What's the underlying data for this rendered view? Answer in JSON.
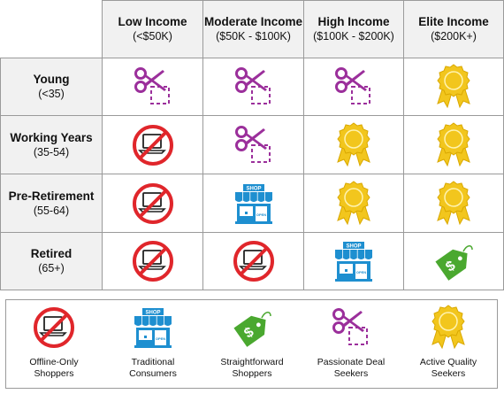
{
  "columns": [
    {
      "title": "Low Income",
      "range": "(<$50K)"
    },
    {
      "title": "Moderate Income",
      "range": "($50K - $100K)"
    },
    {
      "title": "High Income",
      "range": "($100K - $200K)"
    },
    {
      "title": "Elite Income",
      "range": "($200K+)"
    }
  ],
  "rows": [
    {
      "title": "Young",
      "range": "(<35)",
      "segments": [
        "scissors-icon",
        "scissors-icon",
        "scissors-icon",
        "ribbon-icon"
      ]
    },
    {
      "title": "Working Years",
      "range": "(35-54)",
      "segments": [
        "no-laptop-icon",
        "scissors-icon",
        "ribbon-icon",
        "ribbon-icon"
      ]
    },
    {
      "title": "Pre-Retirement",
      "range": "(55-64)",
      "segments": [
        "no-laptop-icon",
        "shop-icon",
        "ribbon-icon",
        "ribbon-icon"
      ]
    },
    {
      "title": "Retired",
      "range": "(65+)",
      "segments": [
        "no-laptop-icon",
        "no-laptop-icon",
        "shop-icon",
        "price-tag-icon"
      ]
    }
  ],
  "shop_sign": "SHOP",
  "shop_door": "OPEN",
  "legend": [
    {
      "icon": "no-laptop-icon",
      "line1": "Offline-Only",
      "line2": "Shoppers"
    },
    {
      "icon": "shop-icon",
      "line1": "Traditional",
      "line2": "Consumers"
    },
    {
      "icon": "price-tag-icon",
      "line1": "Straightforward",
      "line2": "Shoppers"
    },
    {
      "icon": "scissors-icon",
      "line1": "Passionate Deal",
      "line2": "Seekers"
    },
    {
      "icon": "ribbon-icon",
      "line1": "Active Quality",
      "line2": "Seekers"
    }
  ],
  "colors": {
    "scissors": "#9b2f9b",
    "no_sign": "#e0262b",
    "shop": "#1e8fd0",
    "price_tag": "#4aa82f",
    "ribbon": "#f2c61d",
    "header_bg": "#f1f1f1",
    "border": "#9a9a9a"
  }
}
